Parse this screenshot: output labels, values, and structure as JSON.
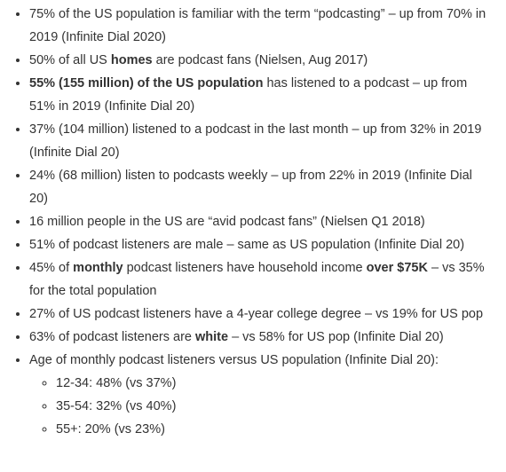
{
  "items": [
    {
      "segments": [
        {
          "text": "75% of the US population is familiar with the term “podcasting” – up from 70% in 2019 (Infinite Dial 2020)",
          "bold": false
        }
      ]
    },
    {
      "segments": [
        {
          "text": "50% of all US ",
          "bold": false
        },
        {
          "text": "homes",
          "bold": true
        },
        {
          "text": " are podcast fans (Nielsen, Aug 2017)",
          "bold": false
        }
      ]
    },
    {
      "segments": [
        {
          "text": "55% (155 million) of the US population",
          "bold": true
        },
        {
          "text": " has listened to a podcast – up from 51% in 2019 (Infinite Dial 20)",
          "bold": false
        }
      ]
    },
    {
      "segments": [
        {
          "text": "37% (104 million) listened to a podcast in the last month – up from 32% in 2019 (Infinite Dial 20)",
          "bold": false
        }
      ]
    },
    {
      "segments": [
        {
          "text": "24% (68 million) listen to podcasts weekly – up from 22% in 2019 (Infinite Dial 20)",
          "bold": false
        }
      ]
    },
    {
      "segments": [
        {
          "text": "16 million people in the US are “avid podcast fans” (Nielsen Q1 2018)",
          "bold": false
        }
      ]
    },
    {
      "segments": [
        {
          "text": "51% of podcast listeners are male – same as US population (Infinite Dial 20)",
          "bold": false
        }
      ]
    },
    {
      "segments": [
        {
          "text": "45% of ",
          "bold": false
        },
        {
          "text": "monthly",
          "bold": true
        },
        {
          "text": " podcast listeners have household income ",
          "bold": false
        },
        {
          "text": "over $75K",
          "bold": true
        },
        {
          "text": " – vs 35% for the total population",
          "bold": false
        }
      ]
    },
    {
      "segments": [
        {
          "text": "27% of US podcast listeners have a 4-year college degree – vs 19% for US pop",
          "bold": false
        }
      ]
    },
    {
      "segments": [
        {
          "text": "63% of podcast listeners are ",
          "bold": false
        },
        {
          "text": "white",
          "bold": true
        },
        {
          "text": " – vs 58% for US pop (Infinite Dial 20)",
          "bold": false
        }
      ]
    },
    {
      "segments": [
        {
          "text": "Age of monthly podcast listeners versus US population (Infinite Dial 20):",
          "bold": false
        }
      ],
      "subitems": [
        "12-34: 48% (vs 37%)",
        "35-54: 32% (vs 40%)",
        "55+: 20% (vs 23%)"
      ]
    }
  ]
}
